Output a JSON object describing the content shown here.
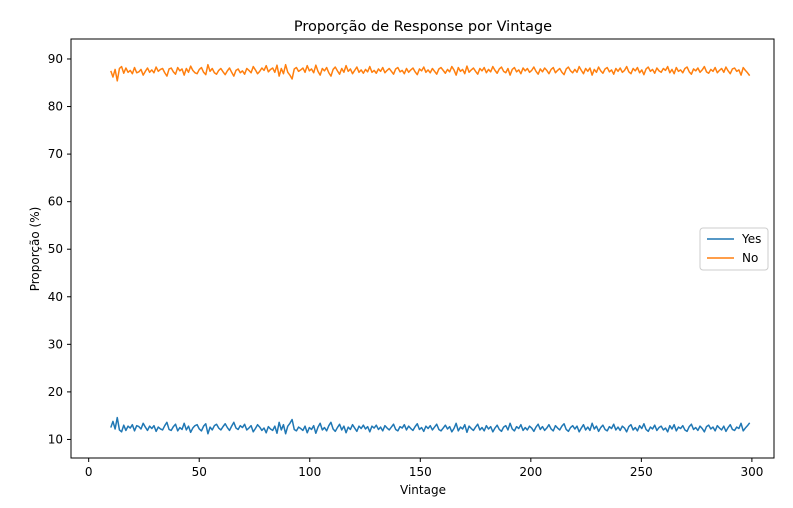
{
  "chart_data": {
    "type": "line",
    "title": "Proporção de Response por Vintage",
    "xlabel": "Vintage",
    "ylabel": "Proporção (%)",
    "xlim": [
      -8,
      310
    ],
    "ylim": [
      6.1,
      94.2
    ],
    "xticks": [
      0,
      50,
      100,
      150,
      200,
      250,
      300
    ],
    "yticks": [
      10,
      20,
      30,
      40,
      50,
      60,
      70,
      80,
      90
    ],
    "legend_position": "center-right",
    "grid": false,
    "x_start": 10,
    "x_end": 299,
    "series": [
      {
        "name": "Yes",
        "color": "#1f77b4",
        "values": [
          12.5,
          13.8,
          12.2,
          14.6,
          12.0,
          11.6,
          13.0,
          11.9,
          12.8,
          12.4,
          13.1,
          11.8,
          12.9,
          12.7,
          12.2,
          13.4,
          12.6,
          11.9,
          12.8,
          12.3,
          12.9,
          11.7,
          12.6,
          12.2,
          12.0,
          12.9,
          13.6,
          12.1,
          11.9,
          12.7,
          13.2,
          11.8,
          12.5,
          12.1,
          13.4,
          12.0,
          12.8,
          11.5,
          12.4,
          12.9,
          13.1,
          12.2,
          11.8,
          12.8,
          13.3,
          11.2,
          12.6,
          12.0,
          12.9,
          13.2,
          12.4,
          12.0,
          12.7,
          13.3,
          12.5,
          11.9,
          12.8,
          13.6,
          12.4,
          12.1,
          12.9,
          12.5,
          13.2,
          12.0,
          12.4,
          12.9,
          11.6,
          12.3,
          13.1,
          12.6,
          11.9,
          12.4,
          11.4,
          12.7,
          12.2,
          11.9,
          12.8,
          11.3,
          13.6,
          12.0,
          13.1,
          11.2,
          12.8,
          13.4,
          14.2,
          12.1,
          11.8,
          12.6,
          12.3,
          11.9,
          12.8,
          11.4,
          12.5,
          12.1,
          12.9,
          11.3,
          12.6,
          13.4,
          12.0,
          12.5,
          11.8,
          12.9,
          13.6,
          12.2,
          11.7,
          12.5,
          13.2,
          12.0,
          12.8,
          11.4,
          12.6,
          12.1,
          13.1,
          12.4,
          11.7,
          12.8,
          12.3,
          13.0,
          12.2,
          12.7,
          11.6,
          12.8,
          12.4,
          13.0,
          12.1,
          12.6,
          11.8,
          12.9,
          12.4,
          12.0,
          12.6,
          13.2,
          12.1,
          11.8,
          12.7,
          12.4,
          13.1,
          12.0,
          12.8,
          12.3,
          11.9,
          12.7,
          13.3,
          12.1,
          12.5,
          11.7,
          12.8,
          12.3,
          12.9,
          12.0,
          12.6,
          13.2,
          12.1,
          11.8,
          12.4,
          13.0,
          12.2,
          12.7,
          11.6,
          12.3,
          13.4,
          11.8,
          12.6,
          12.2,
          13.1,
          11.5,
          12.8,
          12.3,
          11.9,
          12.6,
          13.2,
          12.0,
          12.5,
          11.8,
          12.9,
          12.2,
          12.7,
          11.6,
          12.4,
          13.0,
          12.1,
          11.7,
          12.6,
          12.9,
          12.0,
          13.4,
          12.2,
          11.8,
          12.7,
          12.3,
          13.1,
          11.9,
          12.5,
          12.0,
          12.8,
          12.4,
          11.7,
          12.6,
          13.2,
          12.1,
          12.7,
          11.9,
          12.4,
          13.1,
          12.2,
          11.8,
          12.9,
          12.4,
          12.0,
          12.8,
          13.3,
          12.1,
          11.7,
          12.5,
          12.9,
          12.2,
          12.8,
          11.6,
          12.4,
          13.1,
          12.0,
          12.6,
          11.9,
          13.4,
          12.2,
          12.8,
          11.7,
          12.5,
          13.0,
          12.1,
          11.8,
          12.7,
          12.3,
          13.2,
          12.0,
          12.6,
          11.9,
          12.8,
          12.4,
          11.6,
          12.7,
          13.1,
          12.0,
          12.5,
          11.8,
          12.9,
          12.3,
          13.3,
          12.1,
          11.7,
          12.6,
          12.2,
          13.0,
          11.9,
          12.5,
          12.8,
          12.0,
          12.4,
          11.6,
          12.9,
          12.2,
          13.1,
          11.8,
          12.6,
          12.3,
          12.9,
          12.0,
          11.7,
          12.7,
          13.2,
          12.1,
          12.5,
          11.9,
          12.8,
          12.3,
          11.6,
          12.7,
          13.0,
          12.2,
          12.6,
          11.8,
          12.9,
          12.4,
          12.0,
          12.8,
          11.7,
          12.5,
          13.1,
          12.1,
          11.9,
          12.6,
          12.3,
          13.4,
          11.8,
          12.4,
          12.9,
          13.5
        ]
      },
      {
        "name": "No",
        "color": "#ff7f0e",
        "values": [
          87.5,
          86.2,
          87.8,
          85.4,
          88.0,
          88.4,
          87.0,
          88.1,
          87.2,
          87.6,
          86.9,
          88.2,
          87.1,
          87.3,
          87.8,
          86.6,
          87.4,
          88.1,
          87.2,
          87.7,
          87.1,
          88.3,
          87.4,
          87.8,
          88.0,
          87.1,
          86.4,
          87.9,
          88.1,
          87.3,
          86.8,
          88.2,
          87.5,
          87.9,
          86.6,
          88.0,
          87.2,
          88.5,
          87.6,
          87.1,
          86.9,
          87.8,
          88.2,
          87.2,
          86.7,
          88.8,
          87.4,
          88.0,
          87.1,
          86.8,
          87.6,
          88.0,
          87.3,
          86.7,
          87.5,
          88.1,
          87.2,
          86.4,
          87.6,
          87.9,
          87.1,
          87.5,
          86.8,
          88.0,
          87.6,
          87.1,
          88.4,
          87.7,
          86.9,
          87.4,
          88.1,
          87.6,
          88.6,
          87.3,
          87.8,
          88.1,
          87.2,
          88.7,
          86.4,
          88.0,
          86.9,
          88.8,
          87.2,
          86.6,
          85.8,
          87.9,
          88.2,
          87.4,
          87.7,
          88.1,
          87.2,
          88.6,
          87.5,
          87.9,
          87.1,
          88.7,
          87.4,
          86.6,
          88.0,
          87.5,
          88.2,
          87.1,
          86.4,
          87.8,
          88.3,
          87.5,
          86.8,
          88.0,
          87.2,
          88.6,
          87.4,
          87.9,
          86.9,
          87.6,
          88.3,
          87.2,
          87.7,
          87.0,
          87.8,
          87.3,
          88.4,
          87.2,
          87.6,
          87.0,
          87.9,
          87.4,
          88.2,
          87.1,
          87.6,
          88.0,
          87.4,
          86.8,
          87.9,
          88.2,
          87.3,
          87.6,
          86.9,
          88.0,
          87.2,
          87.7,
          88.1,
          87.3,
          86.7,
          87.9,
          87.5,
          88.3,
          87.2,
          87.7,
          87.1,
          88.0,
          87.4,
          86.8,
          87.9,
          88.2,
          87.6,
          87.0,
          87.8,
          87.3,
          88.4,
          87.7,
          86.6,
          88.2,
          87.4,
          87.8,
          86.9,
          88.5,
          87.2,
          87.7,
          88.1,
          87.4,
          86.8,
          88.0,
          87.5,
          88.2,
          87.1,
          87.8,
          87.3,
          88.4,
          87.6,
          87.0,
          87.9,
          88.3,
          87.4,
          87.1,
          88.0,
          86.6,
          87.8,
          88.2,
          87.3,
          87.7,
          86.9,
          88.1,
          87.5,
          88.0,
          87.2,
          87.6,
          88.3,
          87.4,
          86.8,
          87.9,
          87.3,
          88.1,
          87.6,
          86.9,
          87.8,
          88.2,
          87.1,
          87.6,
          88.0,
          87.2,
          86.7,
          87.9,
          88.3,
          87.5,
          87.1,
          87.8,
          87.2,
          88.4,
          87.6,
          86.9,
          88.0,
          87.4,
          88.1,
          86.6,
          87.8,
          87.2,
          88.3,
          87.5,
          87.0,
          87.9,
          88.2,
          87.3,
          87.7,
          86.8,
          88.0,
          87.4,
          88.1,
          87.2,
          87.6,
          88.4,
          87.3,
          86.9,
          88.0,
          87.5,
          88.2,
          87.1,
          87.7,
          86.7,
          87.9,
          88.3,
          87.4,
          87.8,
          87.0,
          88.1,
          87.5,
          87.2,
          88.0,
          87.6,
          88.4,
          87.1,
          87.8,
          86.9,
          88.2,
          87.4,
          87.7,
          87.1,
          88.0,
          88.3,
          87.3,
          86.8,
          87.9,
          87.5,
          88.1,
          87.2,
          87.7,
          88.4,
          87.3,
          87.0,
          87.8,
          87.4,
          88.2,
          87.1,
          87.6,
          88.0,
          87.2,
          88.3,
          87.5,
          86.9,
          87.9,
          88.1,
          87.4,
          87.7,
          86.6,
          88.2,
          87.6,
          87.1,
          86.5
        ]
      }
    ]
  }
}
